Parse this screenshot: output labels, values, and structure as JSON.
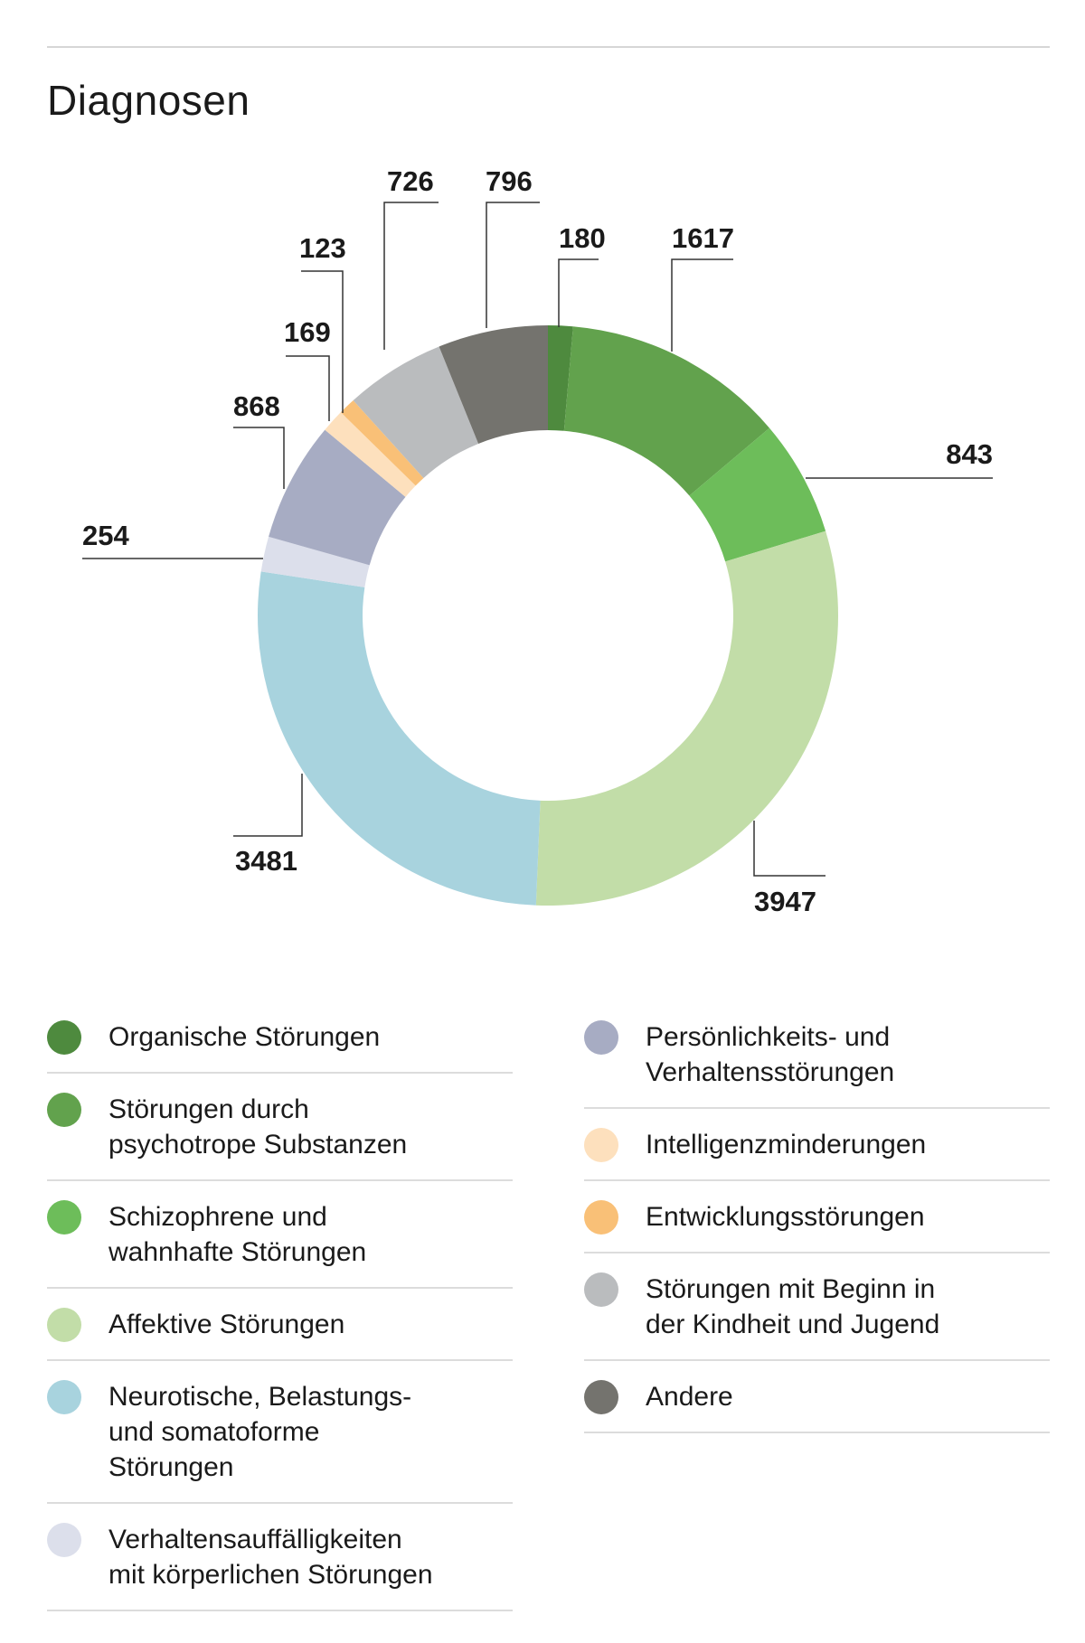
{
  "title": "Diagnosen",
  "chart_data": {
    "type": "pie",
    "subtype": "donut",
    "title": "Diagnosen",
    "start": "top, clockwise",
    "slices": [
      {
        "label": "Organische Störungen",
        "value": 180,
        "color": "#4e8a3e"
      },
      {
        "label": "Störungen durch\npsychotrope Substanzen",
        "value": 1617,
        "color": "#62a24d"
      },
      {
        "label": "Schizophrene und\nwahnhafte Störungen",
        "value": 843,
        "color": "#6dbd5a"
      },
      {
        "label": "Affektive Störungen",
        "value": 3947,
        "color": "#c2dda8"
      },
      {
        "label": "Neurotische, Belastungs-\nund somatoforme\nStörungen",
        "value": 3481,
        "color": "#a8d3de"
      },
      {
        "label": "Verhaltensauffälligkeiten\nmit körperlichen Störungen",
        "value": 254,
        "color": "#dcdfeb"
      },
      {
        "label": "Persönlichkeits- und\nVerhaltensstörungen",
        "value": 868,
        "color": "#a7acc3"
      },
      {
        "label": "Intelligenzminderungen",
        "value": 169,
        "color": "#fde0bd"
      },
      {
        "label": "Entwicklungsstörungen",
        "value": 123,
        "color": "#f9c077"
      },
      {
        "label": "Störungen mit Beginn in\nder Kindheit und Jugend",
        "value": 726,
        "color": "#babcbe"
      },
      {
        "label": "Andere",
        "value": 796,
        "color": "#74736e"
      }
    ],
    "legend_placement": "bottom, two columns"
  }
}
